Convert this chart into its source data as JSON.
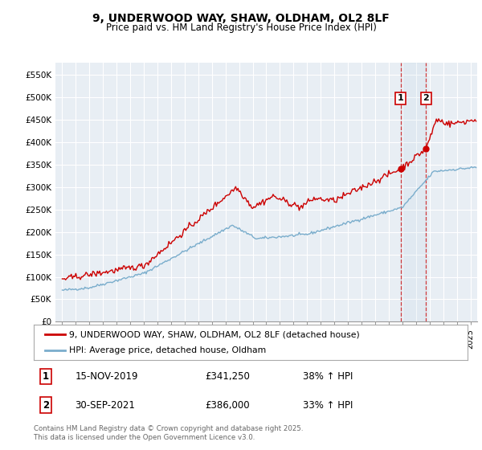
{
  "title_line1": "9, UNDERWOOD WAY, SHAW, OLDHAM, OL2 8LF",
  "title_line2": "Price paid vs. HM Land Registry's House Price Index (HPI)",
  "background_color": "#ffffff",
  "plot_bg_color": "#e8eef4",
  "grid_color": "#ffffff",
  "red_line_color": "#cc0000",
  "blue_line_color": "#7aadcc",
  "sale1_date_num": 2019.88,
  "sale2_date_num": 2021.75,
  "sale1_price": 341250,
  "sale2_price": 386000,
  "ylim_min": 0,
  "ylim_max": 577000,
  "xlim_min": 1994.5,
  "xlim_max": 2025.5,
  "legend_red": "9, UNDERWOOD WAY, SHAW, OLDHAM, OL2 8LF (detached house)",
  "legend_blue": "HPI: Average price, detached house, Oldham",
  "footer": "Contains HM Land Registry data © Crown copyright and database right 2025.\nThis data is licensed under the Open Government Licence v3.0.",
  "yticks": [
    0,
    50000,
    100000,
    150000,
    200000,
    250000,
    300000,
    350000,
    400000,
    450000,
    500000,
    550000
  ],
  "ytick_labels": [
    "£0",
    "£50K",
    "£100K",
    "£150K",
    "£200K",
    "£250K",
    "£300K",
    "£350K",
    "£400K",
    "£450K",
    "£500K",
    "£550K"
  ]
}
